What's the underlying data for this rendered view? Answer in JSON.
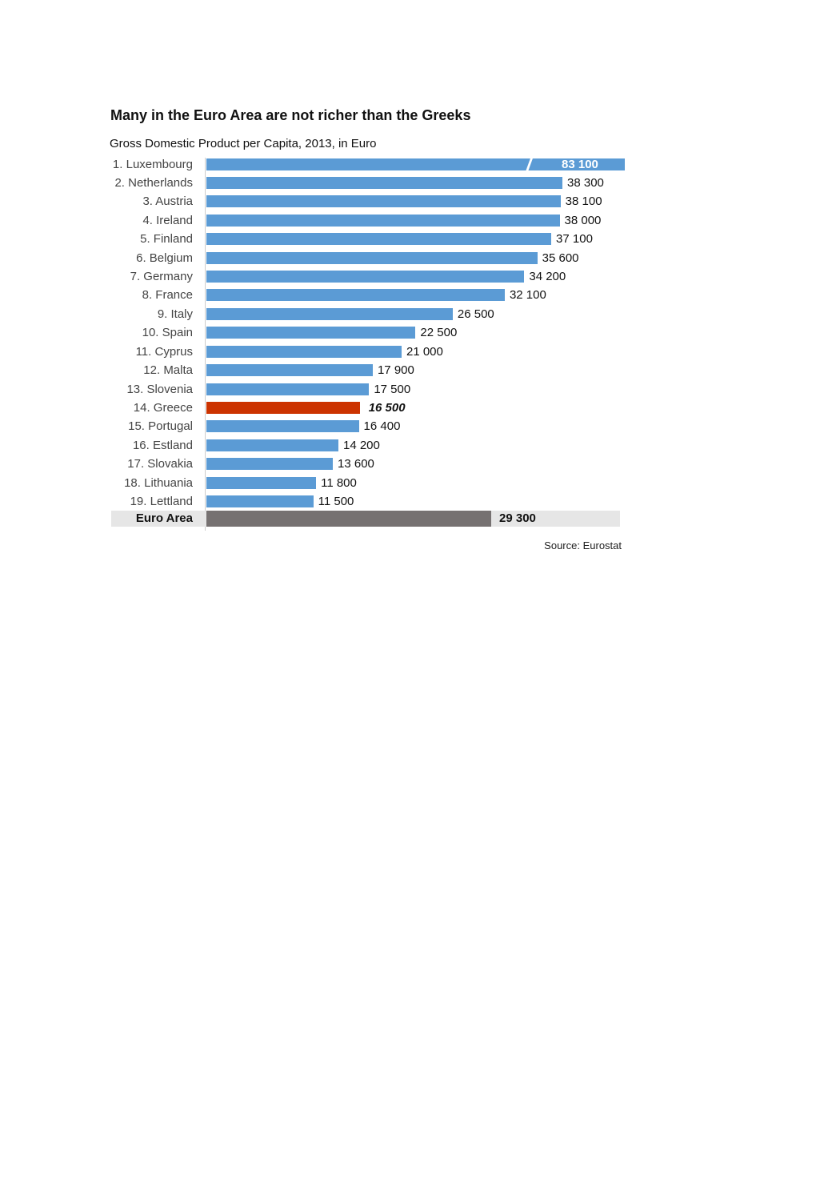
{
  "chart_data": {
    "type": "bar",
    "orientation": "horizontal",
    "title": "Many in the Euro Area are not richer than the Greeks",
    "subtitle": "Gross Domestic Product per Capita, 2013, in Euro",
    "source": "Source: Eurostat",
    "categories": [
      "1. Luxembourg",
      "2. Netherlands",
      "3. Austria",
      "4. Ireland",
      "5. Finland",
      "6. Belgium",
      "7. Germany",
      "8. France",
      "9. Italy",
      "10. Spain",
      "11. Cyprus",
      "12. Malta",
      "13. Slovenia",
      "14. Greece",
      "15. Portugal",
      "16. Estland",
      "17. Slovakia",
      "18. Lithuania",
      "19. Lettland",
      "Euro Area"
    ],
    "values": [
      83100,
      38300,
      38100,
      38000,
      37100,
      35600,
      34200,
      32100,
      26500,
      22500,
      21000,
      17900,
      17500,
      16500,
      16400,
      14200,
      13600,
      11800,
      11500,
      29300
    ],
    "value_labels": [
      "83 100",
      "38 300",
      "38 100",
      "38 000",
      "37 100",
      "35 600",
      "34 200",
      "32 100",
      "26 500",
      "22 500",
      "21 000",
      "17 900",
      "17 500",
      "16 500",
      "16 400",
      "14 200",
      "13 600",
      "11 800",
      "11 500",
      "29 300"
    ],
    "axis_break_above": 45000,
    "highlight": {
      "14. Greece": "#cc3300",
      "Euro Area": "#767171"
    },
    "default_color": "#5b9bd5"
  }
}
